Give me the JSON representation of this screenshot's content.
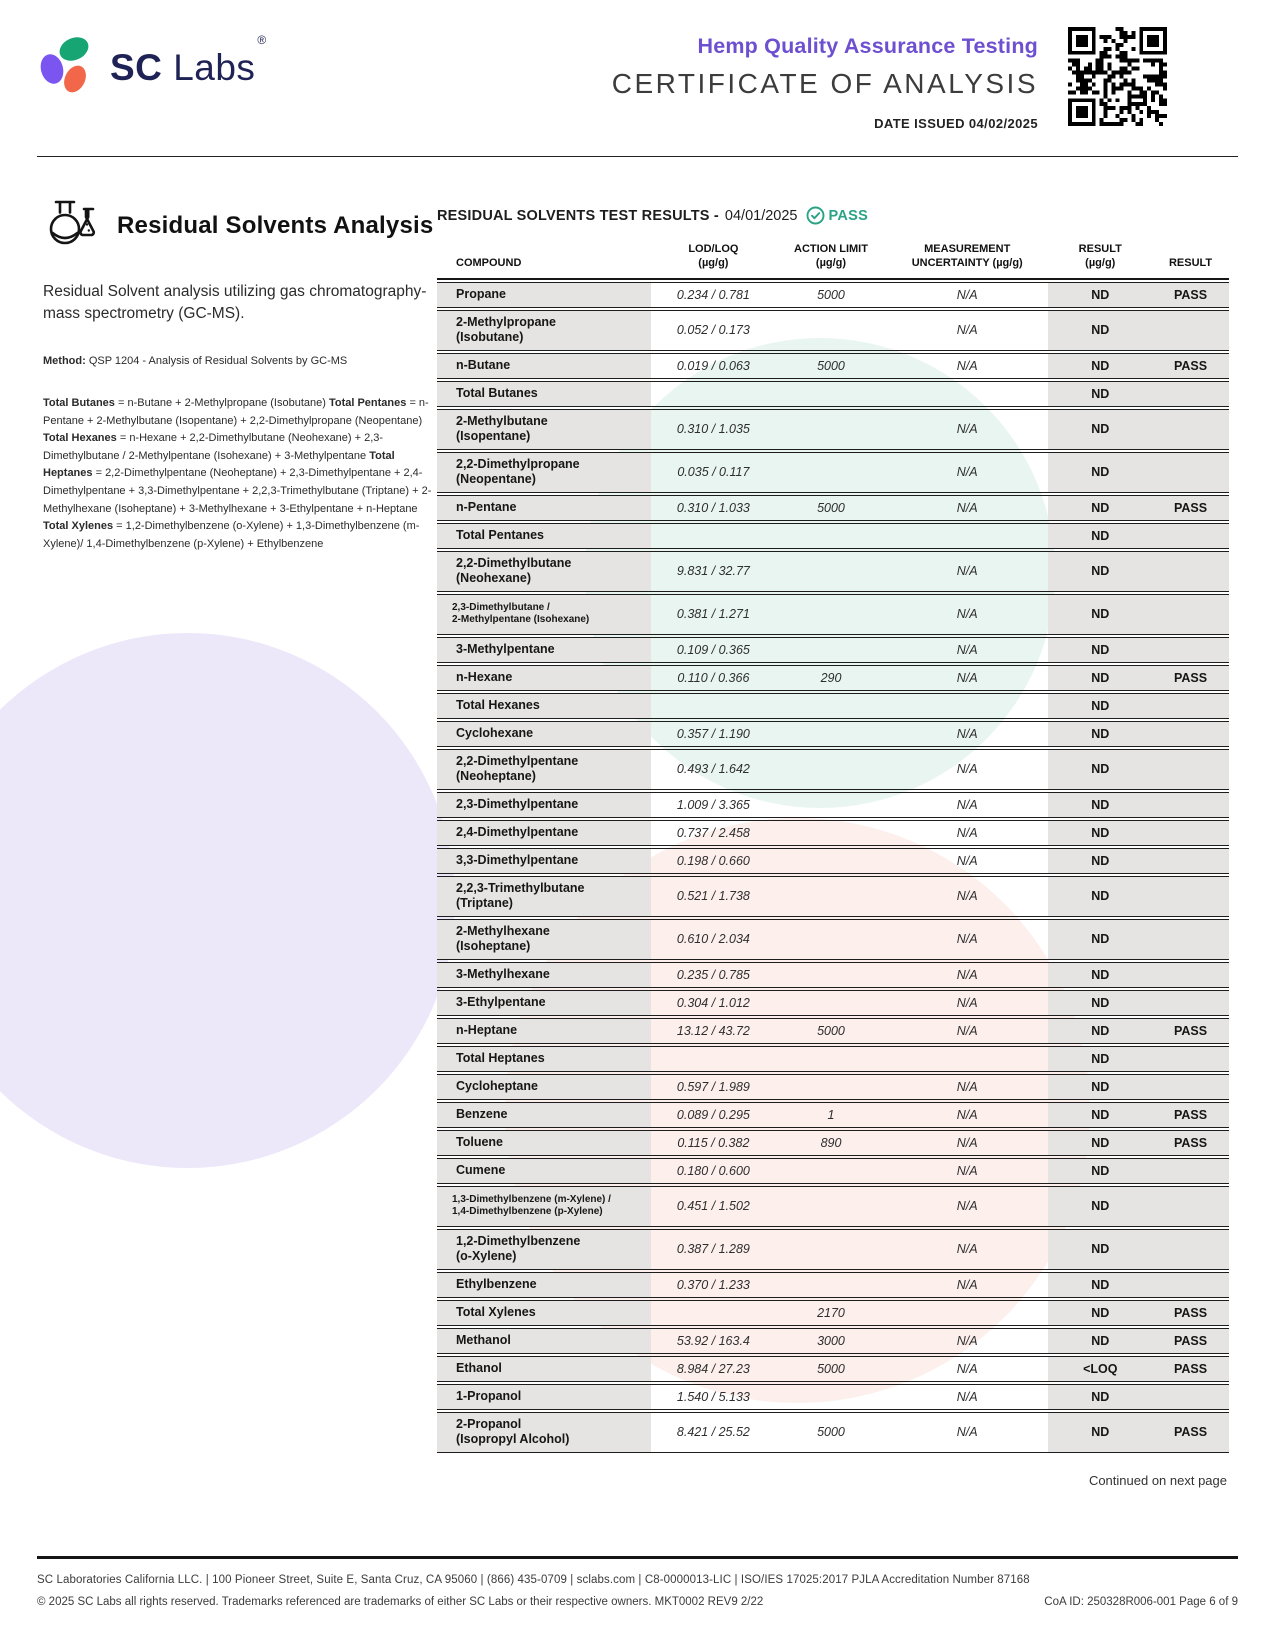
{
  "colors": {
    "accent_purple": "#6d4fd0",
    "pass_teal": "#2aa385",
    "logo_navy": "#1f2254",
    "cell_gray": "#e5e4e2",
    "watermark_mint": "#e9f5f1",
    "watermark_purple": "#ece7f9",
    "watermark_pink": "#fcefec",
    "blob_green": "#17a673",
    "blob_purple": "#7a55f0",
    "blob_orange": "#f26649"
  },
  "header": {
    "logo": {
      "brand_bold": "SC",
      "brand_light": "Labs",
      "reg": "®"
    },
    "program": "Hemp Quality Assurance Testing",
    "title": "CERTIFICATE OF ANALYSIS",
    "date_issued": "DATE ISSUED 04/02/2025"
  },
  "section": {
    "icon": "lab-flasks-icon",
    "title": "Residual Solvents Analysis",
    "description": "Residual Solvent analysis utilizing gas chromatography-mass spectrometry (GC-MS).",
    "method_label": "Method:",
    "method_text": " QSP 1204 - Analysis of Residual Solvents by GC-MS",
    "definitions": [
      {
        "term": "Total Butanes",
        "text": " = n-Butane + 2-Methylpropane (Isobutane)"
      },
      {
        "term": "Total Pentanes",
        "text": " = n-Pentane + 2-Methylbutane (Isopentane) + 2,2-Dimethylpropane (Neopentane)"
      },
      {
        "term": "Total Hexanes",
        "text": " = n-Hexane + 2,2-Dimethylbutane (Neohexane) + 2,3-Dimethylbutane / 2-Methylpentane (Isohexane) + 3-Methylpentane"
      },
      {
        "term": "Total Heptanes",
        "text": " = 2,2-Dimethylpentane (Neoheptane) + 2,3-Dimethylpentane + 2,4-Dimethylpentane + 3,3-Dimethylpentane + 2,2,3-Trimethylbutane (Triptane) + 2-Methylhexane (Isoheptane) + 3-Methylhexane + 3-Ethylpentane + n-Heptane"
      },
      {
        "term": "Total Xylenes",
        "text": " = 1,2-Dimethylbenzene (o-Xylene) + 1,3-Dimethylbenzene (m-Xylene)/ 1,4-Dimethylbenzene (p-Xylene) + Ethylbenzene"
      }
    ]
  },
  "results": {
    "heading": "RESIDUAL SOLVENTS TEST RESULTS -",
    "heading_date": "04/01/2025",
    "status": "PASS",
    "status_icon": "check-circle-icon",
    "columns": [
      {
        "l1": "COMPOUND",
        "l2": ""
      },
      {
        "l1": "LOD/LOQ",
        "l2": "(µg/g)"
      },
      {
        "l1": "ACTION LIMIT",
        "l2": "(µg/g)"
      },
      {
        "l1": "MEASUREMENT",
        "l2": "UNCERTAINTY (µg/g)"
      },
      {
        "l1": "RESULT",
        "l2": "(µg/g)"
      },
      {
        "l1": "RESULT",
        "l2": ""
      }
    ],
    "rows": [
      {
        "c": [
          "Propane"
        ],
        "lod": "0.234 / 0.781",
        "al": "5000",
        "mu": "N/A",
        "res": "ND",
        "pass": "PASS"
      },
      {
        "c": [
          "2-Methylpropane",
          "(Isobutane)"
        ],
        "lod": "0.052 / 0.173",
        "al": "",
        "mu": "N/A",
        "res": "ND",
        "pass": ""
      },
      {
        "c": [
          "n-Butane"
        ],
        "lod": "0.019 / 0.063",
        "al": "5000",
        "mu": "N/A",
        "res": "ND",
        "pass": "PASS"
      },
      {
        "c": [
          "Total Butanes"
        ],
        "lod": "",
        "al": "",
        "mu": "",
        "res": "ND",
        "pass": ""
      },
      {
        "c": [
          "2-Methylbutane",
          "(Isopentane)"
        ],
        "lod": "0.310 / 1.035",
        "al": "",
        "mu": "N/A",
        "res": "ND",
        "pass": ""
      },
      {
        "c": [
          "2,2-Dimethylpropane",
          "(Neopentane)"
        ],
        "lod": "0.035 / 0.117",
        "al": "",
        "mu": "N/A",
        "res": "ND",
        "pass": ""
      },
      {
        "c": [
          "n-Pentane"
        ],
        "lod": "0.310 / 1.033",
        "al": "5000",
        "mu": "N/A",
        "res": "ND",
        "pass": "PASS"
      },
      {
        "c": [
          "Total Pentanes"
        ],
        "lod": "",
        "al": "",
        "mu": "",
        "res": "ND",
        "pass": ""
      },
      {
        "c": [
          "2,2-Dimethylbutane",
          "(Neohexane)"
        ],
        "lod": "9.831 / 32.77",
        "al": "",
        "mu": "N/A",
        "res": "ND",
        "pass": ""
      },
      {
        "c": [
          "2,3-Dimethylbutane /",
          "2-Methylpentane (Isohexane)"
        ],
        "small": true,
        "lod": "0.381 / 1.271",
        "al": "",
        "mu": "N/A",
        "res": "ND",
        "pass": ""
      },
      {
        "c": [
          "3-Methylpentane"
        ],
        "lod": "0.109 / 0.365",
        "al": "",
        "mu": "N/A",
        "res": "ND",
        "pass": ""
      },
      {
        "c": [
          "n-Hexane"
        ],
        "lod": "0.110 / 0.366",
        "al": "290",
        "mu": "N/A",
        "res": "ND",
        "pass": "PASS"
      },
      {
        "c": [
          "Total Hexanes"
        ],
        "lod": "",
        "al": "",
        "mu": "",
        "res": "ND",
        "pass": ""
      },
      {
        "c": [
          "Cyclohexane"
        ],
        "lod": "0.357 / 1.190",
        "al": "",
        "mu": "N/A",
        "res": "ND",
        "pass": ""
      },
      {
        "c": [
          "2,2-Dimethylpentane",
          "(Neoheptane)"
        ],
        "lod": "0.493 / 1.642",
        "al": "",
        "mu": "N/A",
        "res": "ND",
        "pass": ""
      },
      {
        "c": [
          "2,3-Dimethylpentane"
        ],
        "lod": "1.009 / 3.365",
        "al": "",
        "mu": "N/A",
        "res": "ND",
        "pass": ""
      },
      {
        "c": [
          "2,4-Dimethylpentane"
        ],
        "lod": "0.737 / 2.458",
        "al": "",
        "mu": "N/A",
        "res": "ND",
        "pass": ""
      },
      {
        "c": [
          "3,3-Dimethylpentane"
        ],
        "lod": "0.198 / 0.660",
        "al": "",
        "mu": "N/A",
        "res": "ND",
        "pass": ""
      },
      {
        "c": [
          "2,2,3-Trimethylbutane",
          "(Triptane)"
        ],
        "lod": "0.521 / 1.738",
        "al": "",
        "mu": "N/A",
        "res": "ND",
        "pass": ""
      },
      {
        "c": [
          "2-Methylhexane",
          "(Isoheptane)"
        ],
        "lod": "0.610 / 2.034",
        "al": "",
        "mu": "N/A",
        "res": "ND",
        "pass": ""
      },
      {
        "c": [
          "3-Methylhexane"
        ],
        "lod": "0.235 / 0.785",
        "al": "",
        "mu": "N/A",
        "res": "ND",
        "pass": ""
      },
      {
        "c": [
          "3-Ethylpentane"
        ],
        "lod": "0.304 / 1.012",
        "al": "",
        "mu": "N/A",
        "res": "ND",
        "pass": ""
      },
      {
        "c": [
          "n-Heptane"
        ],
        "lod": "13.12 / 43.72",
        "al": "5000",
        "mu": "N/A",
        "res": "ND",
        "pass": "PASS"
      },
      {
        "c": [
          "Total Heptanes"
        ],
        "lod": "",
        "al": "",
        "mu": "",
        "res": "ND",
        "pass": ""
      },
      {
        "c": [
          "Cycloheptane"
        ],
        "lod": "0.597 / 1.989",
        "al": "",
        "mu": "N/A",
        "res": "ND",
        "pass": ""
      },
      {
        "c": [
          "Benzene"
        ],
        "lod": "0.089 / 0.295",
        "al": "1",
        "mu": "N/A",
        "res": "ND",
        "pass": "PASS"
      },
      {
        "c": [
          "Toluene"
        ],
        "lod": "0.115 / 0.382",
        "al": "890",
        "mu": "N/A",
        "res": "ND",
        "pass": "PASS"
      },
      {
        "c": [
          "Cumene"
        ],
        "lod": "0.180 / 0.600",
        "al": "",
        "mu": "N/A",
        "res": "ND",
        "pass": ""
      },
      {
        "c": [
          "1,3-Dimethylbenzene (m-Xylene) /",
          "1,4-Dimethylbenzene (p-Xylene)"
        ],
        "small": true,
        "lod": "0.451 / 1.502",
        "al": "",
        "mu": "N/A",
        "res": "ND",
        "pass": ""
      },
      {
        "c": [
          "1,2-Dimethylbenzene",
          "(o-Xylene)"
        ],
        "lod": "0.387 / 1.289",
        "al": "",
        "mu": "N/A",
        "res": "ND",
        "pass": ""
      },
      {
        "c": [
          "Ethylbenzene"
        ],
        "lod": "0.370 / 1.233",
        "al": "",
        "mu": "N/A",
        "res": "ND",
        "pass": ""
      },
      {
        "c": [
          "Total Xylenes"
        ],
        "lod": "",
        "al": "2170",
        "mu": "",
        "res": "ND",
        "pass": "PASS"
      },
      {
        "c": [
          "Methanol"
        ],
        "lod": "53.92 / 163.4",
        "al": "3000",
        "mu": "N/A",
        "res": "ND",
        "pass": "PASS"
      },
      {
        "c": [
          "Ethanol"
        ],
        "lod": "8.984 / 27.23",
        "al": "5000",
        "mu": "N/A",
        "res": "<LOQ",
        "pass": "PASS"
      },
      {
        "c": [
          "1-Propanol"
        ],
        "lod": "1.540 / 5.133",
        "al": "",
        "mu": "N/A",
        "res": "ND",
        "pass": ""
      },
      {
        "c": [
          "2-Propanol",
          "(Isopropyl Alcohol)"
        ],
        "lod": "8.421 / 25.52",
        "al": "5000",
        "mu": "N/A",
        "res": "ND",
        "pass": "PASS"
      }
    ],
    "continued": "Continued on next page"
  },
  "footer": {
    "line1": "SC Laboratories California LLC. | 100 Pioneer Street, Suite E, Santa Cruz, CA 95060 | (866) 435-0709 | sclabs.com | C8-0000013-LIC | ISO/IES 17025:2017 PJLA Accreditation Number 87168",
    "line2_left": "© 2025 SC Labs all rights reserved. Trademarks referenced are trademarks of either SC Labs or their respective owners. MKT0002 REV9 2/22",
    "line2_right": "CoA ID: 250328R006-001  Page 6 of 9"
  }
}
